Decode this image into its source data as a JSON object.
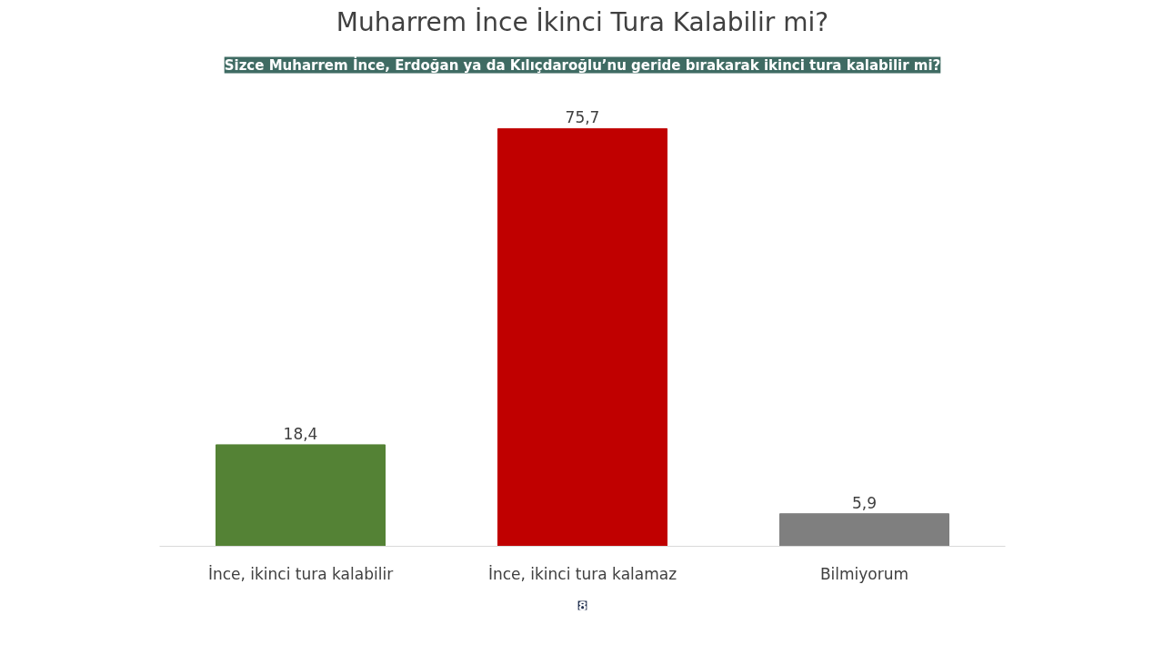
{
  "chart_data": {
    "type": "bar",
    "title": "Muharrem İnce İkinci Tura Kalabilir mi?",
    "subtitle": "Sizce Muharrem İnce, Erdoğan ya da Kılıçdaroğlu’nu geride bırakarak ikinci tura kalabilir mi?",
    "categories": [
      "İnce, ikinci tura kalabilir",
      "İnce, ikinci tura kalamaz",
      "Bilmiyorum"
    ],
    "values": [
      18.4,
      75.7,
      5.9
    ],
    "colors": [
      "#548235",
      "#c00000",
      "#7f7f7f"
    ],
    "value_labels": [
      "18,4",
      "75,7",
      "5,9"
    ],
    "annotations": [
      "8"
    ],
    "grid": false
  }
}
